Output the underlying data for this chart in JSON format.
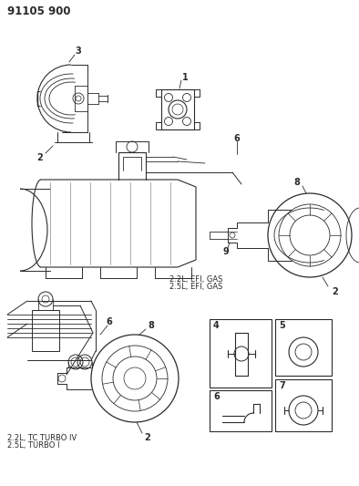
{
  "bg_color": "#ffffff",
  "ink_color": "#2a2a2a",
  "title": "91105 900",
  "gas_label1": "2.2L, EFI, GAS",
  "gas_label2": "2.5L, EFI, GAS",
  "turbo_label1": "2.2L, TC TURBO IV",
  "turbo_label2": "2.5L, TURBO I",
  "parts": [
    "1",
    "2",
    "3",
    "4",
    "5",
    "6",
    "7",
    "8",
    "9"
  ]
}
